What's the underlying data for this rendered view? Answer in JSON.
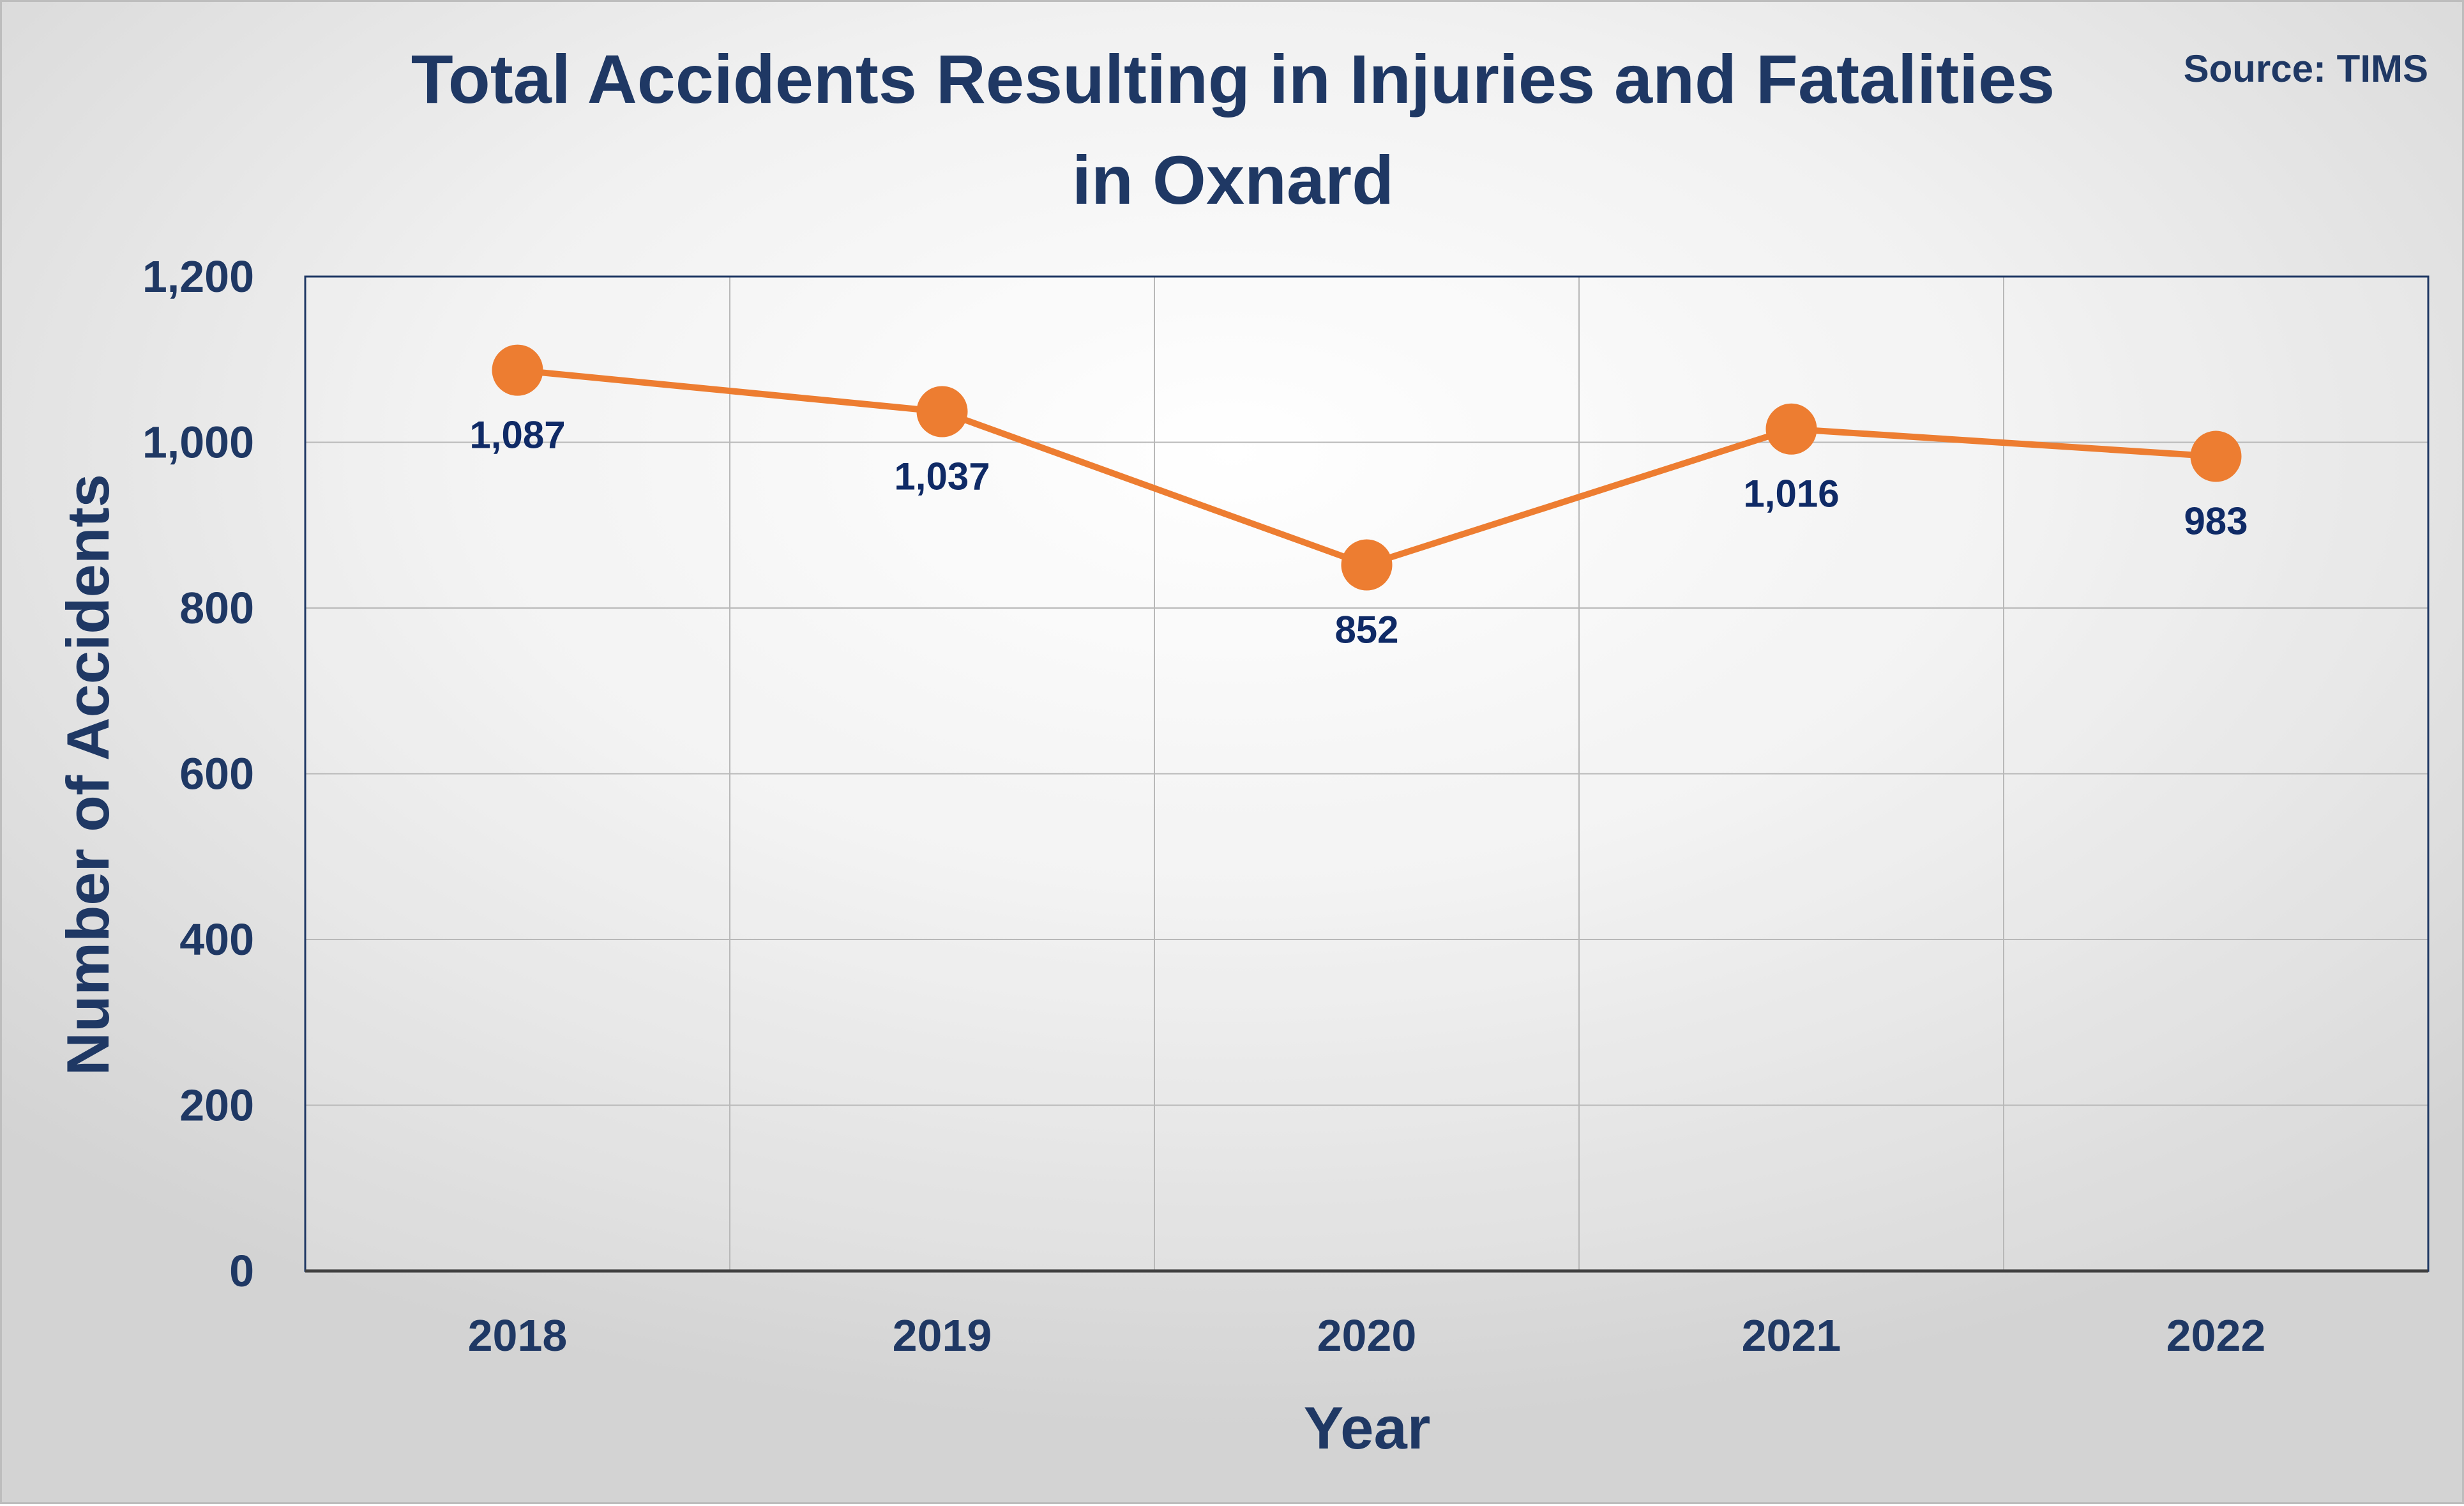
{
  "chart_data": {
    "type": "line",
    "title_lines": [
      "Total Accidents Resulting in Injuries and Fatalities",
      "in Oxnard"
    ],
    "source": "Source: TIMS",
    "xlabel": "Year",
    "ylabel": "Number of Accidents",
    "categories": [
      "2018",
      "2019",
      "2020",
      "2021",
      "2022"
    ],
    "values": [
      1087,
      1037,
      852,
      1016,
      983
    ],
    "data_labels": [
      "1,087",
      "1,037",
      "852",
      "1,016",
      "983"
    ],
    "ylim": [
      0,
      1200
    ],
    "yticks": [
      0,
      200,
      400,
      600,
      800,
      1000,
      1200
    ],
    "ytick_labels": [
      "0",
      "200",
      "400",
      "600",
      "800",
      "1,000",
      "1,200"
    ],
    "grid": true,
    "legend": "none",
    "colors": {
      "line": "#ed7d31",
      "text": "#1f3864",
      "data_label": "#0f2a66",
      "plot_border": "#1f3864",
      "grid": "#c0c0c0"
    }
  }
}
